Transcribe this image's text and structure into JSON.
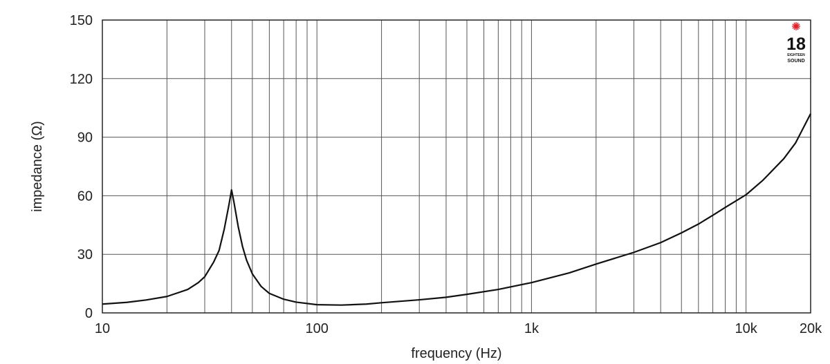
{
  "chart_data": {
    "type": "line",
    "xscale": "log",
    "xlim": [
      10,
      20000
    ],
    "ylim": [
      0,
      150
    ],
    "xlabel": "frequency (Hz)",
    "ylabel": "impedance (Ω)",
    "xticks": [
      {
        "value": 10,
        "label": "10"
      },
      {
        "value": 100,
        "label": "100"
      },
      {
        "value": 1000,
        "label": "1k"
      },
      {
        "value": 10000,
        "label": "10k"
      },
      {
        "value": 20000,
        "label": "20k"
      }
    ],
    "yticks": [
      {
        "value": 0,
        "label": "0"
      },
      {
        "value": 30,
        "label": "30"
      },
      {
        "value": 60,
        "label": "60"
      },
      {
        "value": 90,
        "label": "90"
      },
      {
        "value": 120,
        "label": "120"
      },
      {
        "value": 150,
        "label": "150"
      }
    ],
    "grid": true,
    "series": [
      {
        "x": [
          10,
          13,
          16,
          20,
          25,
          28,
          30,
          33,
          35,
          37,
          39,
          40,
          41,
          43,
          45,
          47,
          50,
          55,
          60,
          70,
          80,
          100,
          130,
          170,
          200,
          300,
          400,
          500,
          700,
          1000,
          1500,
          2000,
          3000,
          4000,
          5000,
          6000,
          7000,
          8000,
          10000,
          12000,
          15000,
          17000,
          20000
        ],
        "y": [
          4.5,
          5.4,
          6.6,
          8.4,
          12,
          15.5,
          18.5,
          26,
          32,
          43,
          56,
          63,
          57,
          44,
          34,
          27,
          20,
          13.5,
          10,
          7,
          5.5,
          4.2,
          4,
          4.5,
          5.2,
          6.7,
          8,
          9.5,
          12,
          15.5,
          20.5,
          25,
          31,
          36,
          41,
          45.5,
          50,
          54,
          60.5,
          68,
          79,
          87,
          102
        ]
      }
    ]
  },
  "logo": {
    "number": "18",
    "line1": "EIGHTEEN",
    "line2": "SOUND",
    "accent_color": "#e0202a"
  }
}
